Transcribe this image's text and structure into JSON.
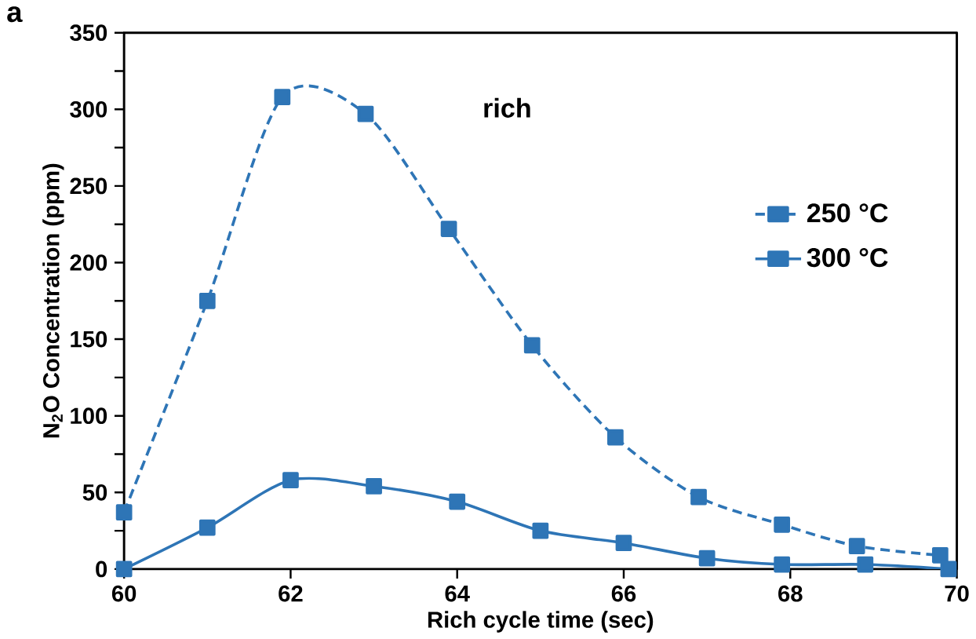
{
  "chart_data": {
    "type": "line",
    "xlabel": "Rich cycle time (sec)",
    "ylabel": "N$_{2}$O Concentration (ppm)",
    "annotations": [
      "a",
      "rich"
    ],
    "series": [
      {
        "name": "250 °C",
        "color": "#2e75b6",
        "line_style": "dashed",
        "x": [
          60,
          61,
          61.9,
          62.9,
          63.9,
          64.9,
          65.9,
          66.9,
          67.9,
          68.8,
          69.8
        ],
        "values": [
          37,
          175,
          308,
          297,
          222,
          146,
          86,
          47,
          29,
          15,
          9
        ]
      },
      {
        "name": "300 °C",
        "color": "#2e75b6",
        "line_style": "solid",
        "x": [
          60,
          61,
          62,
          63,
          64,
          65,
          66,
          67,
          67.9,
          68.9,
          69.9
        ],
        "values": [
          0,
          27,
          58,
          54,
          44,
          25,
          17,
          7,
          3,
          3,
          0
        ]
      }
    ],
    "xlim": [
      60,
      70
    ],
    "ylim": [
      0,
      350
    ],
    "xticks": [
      60,
      62,
      64,
      66,
      68,
      70
    ],
    "yticks": [
      0,
      {
        "value": 25,
        "label": null
      },
      50,
      {
        "value": 75,
        "label": null
      },
      100,
      {
        "value": 125,
        "label": null
      },
      150,
      {
        "value": 175,
        "label": null
      },
      200,
      {
        "value": 225,
        "label": null
      },
      250,
      {
        "value": 275,
        "label": null
      },
      300,
      {
        "value": 325,
        "label": null
      },
      350
    ],
    "marker": "square",
    "legend": "right",
    "grid": false
  }
}
